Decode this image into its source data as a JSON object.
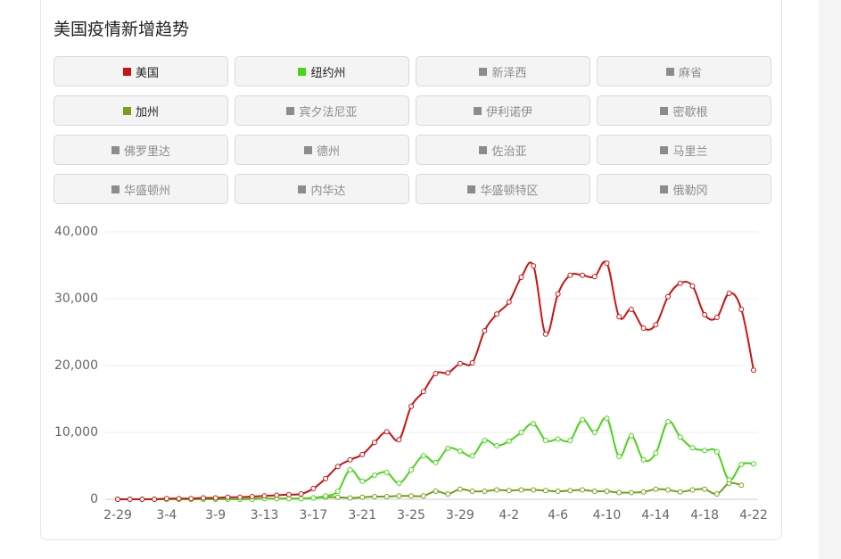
{
  "chart_data": {
    "type": "line",
    "title": "美国疫情新增趋势",
    "categories": [
      "2-29",
      null,
      null,
      null,
      "3-4",
      null,
      null,
      null,
      "3-9",
      null,
      null,
      null,
      "3-13",
      null,
      null,
      null,
      "3-17",
      null,
      null,
      null,
      "3-21",
      null,
      null,
      null,
      "3-25",
      null,
      null,
      null,
      "3-29",
      null,
      null,
      null,
      "4-2",
      null,
      null,
      null,
      "4-6",
      null,
      null,
      null,
      "4-10",
      null,
      null,
      null,
      "4-14",
      null,
      null,
      null,
      "4-18",
      null,
      null,
      null,
      "4-22"
    ],
    "series": [
      {
        "name": "美国",
        "color": "#c81414",
        "values": [
          0,
          0,
          0,
          0,
          100,
          100,
          100,
          200,
          200,
          300,
          300,
          400,
          500,
          600,
          700,
          800,
          1600,
          3100,
          4900,
          5900,
          6700,
          8500,
          10100,
          8900,
          13900,
          16100,
          18800,
          18900,
          20300,
          20400,
          25200,
          27700,
          29500,
          33200,
          34900,
          24700,
          30700,
          33500,
          33500,
          33300,
          35300,
          27300,
          28400,
          25600,
          26100,
          30300,
          32300,
          31900,
          27600,
          27200,
          30800,
          28400,
          19300
        ]
      },
      {
        "name": "纽约州",
        "color": "#4cd41a",
        "values": [
          0,
          0,
          0,
          0,
          0,
          0,
          0,
          0,
          0,
          0,
          0,
          0,
          100,
          100,
          100,
          100,
          200,
          500,
          1200,
          4400,
          2700,
          3600,
          4000,
          2400,
          4400,
          6500,
          5500,
          7600,
          7200,
          6500,
          8800,
          8000,
          8700,
          10000,
          11300,
          8800,
          9000,
          8800,
          11900,
          10000,
          12100,
          6400,
          9500,
          5900,
          6900,
          11600,
          9300,
          7700,
          7300,
          7100,
          2900,
          5200,
          5300
        ]
      },
      {
        "name": "加州",
        "color": "#74a01a",
        "values": [
          0,
          0,
          0,
          0,
          0,
          0,
          0,
          0,
          0,
          0,
          0,
          100,
          100,
          100,
          100,
          100,
          200,
          300,
          300,
          200,
          300,
          400,
          400,
          500,
          500,
          500,
          1200,
          800,
          1500,
          1200,
          1200,
          1400,
          1300,
          1400,
          1400,
          1300,
          1200,
          1300,
          1400,
          1200,
          1200,
          1000,
          1000,
          1100,
          1500,
          1400,
          1100,
          1400,
          1500,
          800,
          2400,
          2100,
          null
        ]
      }
    ],
    "inactive_series": [
      "新泽西",
      "麻省",
      "宾夕法尼亚",
      "伊利诺伊",
      "密歇根",
      "佛罗里达",
      "德州",
      "佐治亚",
      "马里兰",
      "华盛顿州",
      "内华达",
      "华盛顿特区",
      "俄勒冈"
    ],
    "inactive_color": "#8c8c8c",
    "ylim": [
      0,
      40000
    ],
    "yticks": [
      0,
      {
        "value": 10000,
        "label": "10,000"
      },
      {
        "value": 20000,
        "label": "20,000"
      },
      {
        "value": 30000,
        "label": "30,000"
      },
      {
        "value": 40000,
        "label": "40,000"
      }
    ],
    "grid": true
  }
}
